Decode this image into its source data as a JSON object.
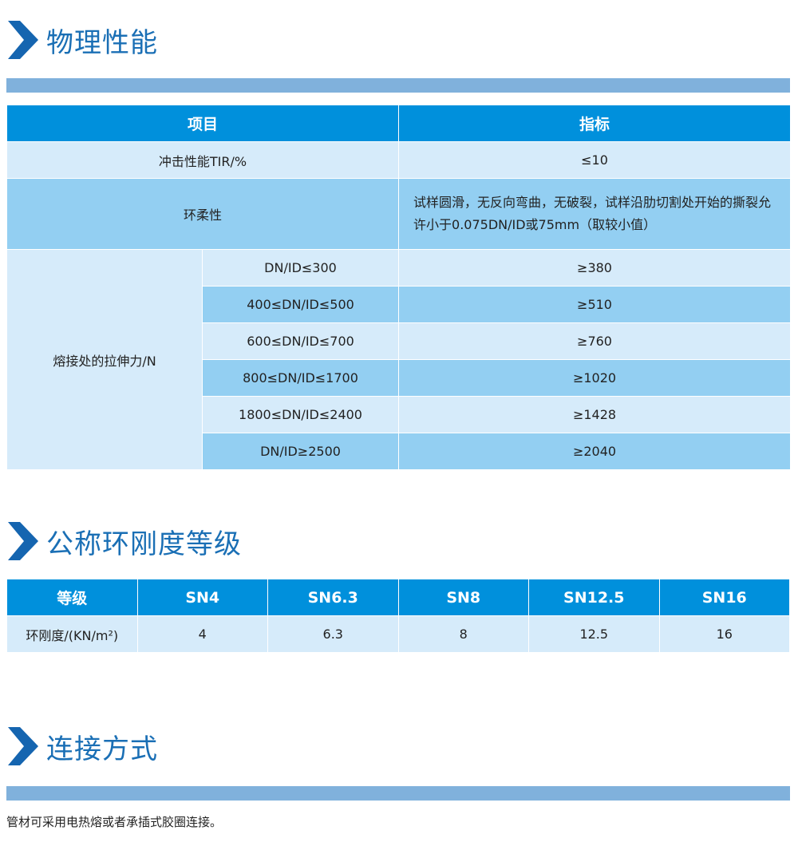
{
  "sections": {
    "physical": {
      "title": "物理性能",
      "headers": [
        "项目",
        "指标"
      ],
      "impact": {
        "label": "冲击性能TIR/%",
        "value": "≤10"
      },
      "ring_flex": {
        "label": "环柔性",
        "value": "试样圆滑，无反向弯曲，无破裂，试样沿肋切割处开始的撕裂允许小于0.075DN/ID或75mm（取较小值）"
      },
      "tensile": {
        "label": "熔接处的拉伸力/N",
        "rows": [
          {
            "range": "DN/ID≤300",
            "value": "≥380"
          },
          {
            "range": "400≤DN/ID≤500",
            "value": "≥510"
          },
          {
            "range": "600≤DN/ID≤700",
            "value": "≥760"
          },
          {
            "range": "800≤DN/ID≤1700",
            "value": "≥1020"
          },
          {
            "range": "1800≤DN/ID≤2400",
            "value": "≥1428"
          },
          {
            "range": "DN/ID≥2500",
            "value": "≥2040"
          }
        ]
      }
    },
    "stiffness": {
      "title": "公称环刚度等级",
      "headers": [
        "等级",
        "SN4",
        "SN6.3",
        "SN8",
        "SN12.5",
        "SN16"
      ],
      "row": [
        "环刚度/(KN/m²)",
        "4",
        "6.3",
        "8",
        "12.5",
        "16"
      ]
    },
    "connection": {
      "title": "连接方式",
      "text": "管材可采用电热熔或者承插式胶圈连接。"
    }
  },
  "colors": {
    "title": "#1a6fb5",
    "header": "#0090dc",
    "light": "#d6ebfa",
    "mid": "#93cff2",
    "bar": "#80b1dc"
  }
}
